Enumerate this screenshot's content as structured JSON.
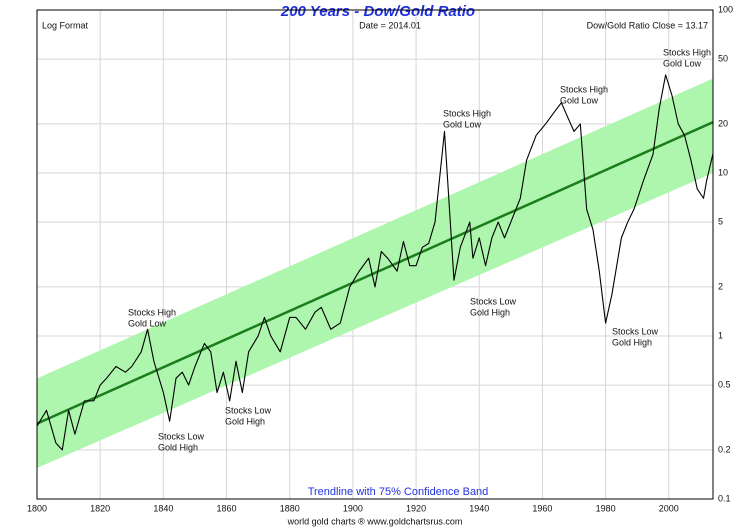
{
  "chart_data": {
    "type": "line",
    "title": "200 Years - Dow/Gold Ratio",
    "header_left": "Log Format",
    "header_center": "Date = 2014.01",
    "header_right": "Dow/Gold Ratio Close = 13.17",
    "band_label": "Trendline with 75% Confidence Band",
    "footer": "world gold charts ® www.goldchartsrus.com",
    "log_scale": true,
    "grid": true,
    "xlim": [
      1800,
      2014
    ],
    "xticks": [
      1800,
      1820,
      1840,
      1860,
      1880,
      1900,
      1920,
      1940,
      1960,
      1980,
      2000
    ],
    "ylim": [
      0.1,
      100
    ],
    "yticks": [
      100,
      50,
      20,
      10,
      5,
      2,
      1,
      0.5,
      0.2,
      0.1
    ],
    "series": [
      {
        "name": "Dow/Gold Ratio",
        "color": "#000000",
        "x": [
          1800,
          1803,
          1806,
          1808,
          1810,
          1812,
          1815,
          1818,
          1820,
          1822,
          1825,
          1828,
          1830,
          1833,
          1835,
          1837,
          1840,
          1842,
          1844,
          1846,
          1848,
          1850,
          1853,
          1855,
          1857,
          1859,
          1861,
          1863,
          1865,
          1867,
          1870,
          1872,
          1874,
          1877,
          1880,
          1882,
          1885,
          1888,
          1890,
          1893,
          1896,
          1899,
          1902,
          1905,
          1907,
          1909,
          1911,
          1914,
          1916,
          1918,
          1920,
          1922,
          1924,
          1926,
          1929,
          1930,
          1932,
          1934,
          1937,
          1938,
          1940,
          1942,
          1944,
          1946,
          1948,
          1950,
          1953,
          1955,
          1958,
          1961,
          1964,
          1966,
          1968,
          1970,
          1972,
          1974,
          1976,
          1978,
          1980,
          1982,
          1985,
          1987,
          1989,
          1992,
          1995,
          1997,
          1999,
          2001,
          2003,
          2005,
          2007,
          2009,
          2011,
          2012,
          2014
        ],
        "values": [
          0.28,
          0.35,
          0.22,
          0.2,
          0.35,
          0.25,
          0.4,
          0.4,
          0.5,
          0.55,
          0.65,
          0.6,
          0.65,
          0.8,
          1.1,
          0.7,
          0.45,
          0.3,
          0.55,
          0.6,
          0.5,
          0.65,
          0.9,
          0.8,
          0.45,
          0.6,
          0.4,
          0.7,
          0.45,
          0.8,
          1.0,
          1.3,
          1.0,
          0.8,
          1.3,
          1.3,
          1.1,
          1.4,
          1.5,
          1.1,
          1.2,
          2.0,
          2.5,
          3.0,
          2.0,
          3.3,
          3.0,
          2.5,
          3.8,
          2.7,
          2.7,
          3.5,
          3.7,
          5.0,
          18,
          9,
          2.2,
          3.5,
          5,
          3,
          4,
          2.7,
          4,
          5,
          4,
          5,
          7,
          12,
          17,
          20,
          24,
          27,
          22,
          18,
          20,
          6,
          4.5,
          2.5,
          1.2,
          1.8,
          4,
          5,
          6,
          9,
          13,
          25,
          40,
          30,
          20,
          17,
          12,
          8,
          7,
          9,
          13.17
        ]
      }
    ],
    "trend": {
      "color": "#1b7d1b",
      "x": [
        1800,
        2014
      ],
      "values": [
        0.29,
        20.5
      ]
    },
    "band": {
      "color": "#aef5ae",
      "x": [
        1800,
        2014
      ],
      "upper": [
        0.55,
        38
      ],
      "lower": [
        0.155,
        10
      ]
    },
    "annotations": [
      [
        "Stocks High",
        "Gold Low"
      ],
      [
        "Stocks Low",
        "Gold High"
      ],
      [
        "Stocks Low",
        "Gold High"
      ],
      [
        "Stocks High",
        "Gold Low"
      ],
      [
        "Stocks Low",
        "Gold High"
      ],
      [
        "Stocks High",
        "Gold Low"
      ],
      [
        "Stocks Low",
        "Gold High"
      ],
      [
        "Stocks High",
        "Gold Low"
      ]
    ]
  }
}
